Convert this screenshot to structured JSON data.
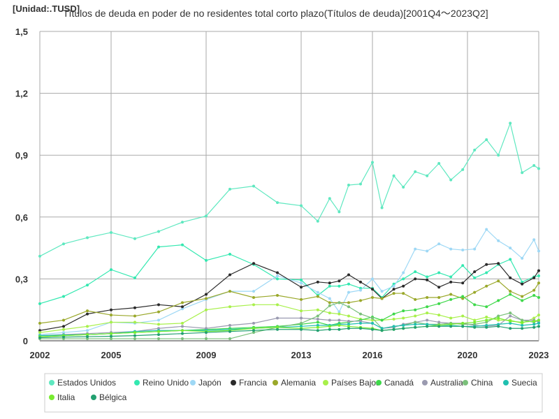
{
  "chart_data": {
    "type": "line",
    "title": "Títulos de deuda en poder de no residentes total corto plazo(Títulos de deuda)[2001Q4～2023Q2]",
    "unit_label": "[Unidad:.TUSD]",
    "xlim": [
      2002,
      2023
    ],
    "ylim": [
      0,
      1.5
    ],
    "x_ticks": [
      2002,
      2005,
      2009,
      2013,
      2016,
      2020,
      2023
    ],
    "y_ticks": [
      0,
      0.3,
      0.6,
      0.9,
      1.2,
      1.5
    ],
    "y_tick_labels": [
      "0",
      "0,3",
      "0,6",
      "0,9",
      "1,2",
      "1,5"
    ],
    "grid": true,
    "legend_position": "bottom",
    "series": [
      {
        "name": "Estados Unidos",
        "color": "#5fe8c0",
        "x": [
          2002,
          2003,
          2004,
          2005,
          2006,
          2007,
          2008,
          2009,
          2010,
          2011,
          2012,
          2013,
          2013.7,
          2014.2,
          2014.6,
          2015,
          2015.5,
          2016,
          2016.4,
          2016.9,
          2017.3,
          2017.8,
          2018.3,
          2018.8,
          2019.3,
          2019.8,
          2020.3,
          2020.8,
          2021.3,
          2021.8,
          2022.3,
          2022.8,
          2023
        ],
        "values": [
          0.41,
          0.47,
          0.5,
          0.525,
          0.495,
          0.53,
          0.575,
          0.605,
          0.735,
          0.75,
          0.67,
          0.655,
          0.58,
          0.69,
          0.625,
          0.755,
          0.76,
          0.865,
          0.645,
          0.8,
          0.745,
          0.82,
          0.8,
          0.86,
          0.78,
          0.83,
          0.925,
          0.975,
          0.9,
          1.055,
          0.815,
          0.85,
          0.835
        ]
      },
      {
        "name": "Reino Unido",
        "color": "#33e8b0",
        "x": [
          2002,
          2003,
          2004,
          2005,
          2006,
          2007,
          2008,
          2009,
          2010,
          2011,
          2012,
          2013,
          2013.7,
          2014.2,
          2014.6,
          2015,
          2015.5,
          2016,
          2016.4,
          2016.9,
          2017.3,
          2017.8,
          2018.3,
          2018.8,
          2019.3,
          2019.8,
          2020.3,
          2020.8,
          2021.3,
          2021.8,
          2022.3,
          2022.8,
          2023
        ],
        "values": [
          0.18,
          0.215,
          0.27,
          0.345,
          0.305,
          0.455,
          0.465,
          0.39,
          0.42,
          0.37,
          0.3,
          0.295,
          0.22,
          0.265,
          0.265,
          0.275,
          0.255,
          0.255,
          0.21,
          0.275,
          0.3,
          0.335,
          0.31,
          0.33,
          0.31,
          0.365,
          0.305,
          0.33,
          0.37,
          0.395,
          0.285,
          0.31,
          0.315
        ]
      },
      {
        "name": "Japón",
        "color": "#9ed8f5",
        "x": [
          2002,
          2003,
          2004,
          2005,
          2006,
          2007,
          2008,
          2009,
          2010,
          2011,
          2012,
          2013,
          2013.7,
          2014.2,
          2014.6,
          2015,
          2015.5,
          2016,
          2016.4,
          2016.9,
          2017.3,
          2017.8,
          2018.3,
          2018.8,
          2019.3,
          2019.8,
          2020.3,
          2020.8,
          2021.3,
          2021.8,
          2022.3,
          2022.8,
          2023
        ],
        "values": [
          0.03,
          0.04,
          0.05,
          0.09,
          0.085,
          0.1,
          0.155,
          0.2,
          0.24,
          0.24,
          0.315,
          0.28,
          0.235,
          0.205,
          0.14,
          0.235,
          0.245,
          0.3,
          0.24,
          0.265,
          0.33,
          0.445,
          0.435,
          0.47,
          0.445,
          0.44,
          0.445,
          0.54,
          0.485,
          0.45,
          0.4,
          0.49,
          0.435
        ]
      },
      {
        "name": "Francia",
        "color": "#2a2a2a",
        "x": [
          2002,
          2003,
          2004,
          2005,
          2006,
          2007,
          2008,
          2009,
          2010,
          2011,
          2012,
          2013,
          2013.7,
          2014.2,
          2014.6,
          2015,
          2015.5,
          2016,
          2016.4,
          2016.9,
          2017.3,
          2017.8,
          2018.3,
          2018.8,
          2019.3,
          2019.8,
          2020.3,
          2020.8,
          2021.3,
          2021.8,
          2022.3,
          2022.8,
          2023
        ],
        "values": [
          0.05,
          0.07,
          0.13,
          0.15,
          0.16,
          0.175,
          0.165,
          0.225,
          0.32,
          0.375,
          0.33,
          0.26,
          0.285,
          0.28,
          0.29,
          0.32,
          0.285,
          0.25,
          0.205,
          0.25,
          0.265,
          0.3,
          0.295,
          0.26,
          0.285,
          0.28,
          0.335,
          0.37,
          0.375,
          0.305,
          0.275,
          0.305,
          0.34
        ]
      },
      {
        "name": "Alemania",
        "color": "#9aa82a",
        "x": [
          2002,
          2003,
          2004,
          2005,
          2006,
          2007,
          2008,
          2009,
          2010,
          2011,
          2012,
          2013,
          2013.7,
          2014.2,
          2014.6,
          2015,
          2015.5,
          2016,
          2016.4,
          2016.9,
          2017.3,
          2017.8,
          2018.3,
          2018.8,
          2019.3,
          2019.8,
          2020.3,
          2020.8,
          2021.3,
          2021.8,
          2022.3,
          2022.8,
          2023
        ],
        "values": [
          0.085,
          0.1,
          0.145,
          0.125,
          0.12,
          0.14,
          0.185,
          0.205,
          0.24,
          0.21,
          0.22,
          0.2,
          0.215,
          0.185,
          0.185,
          0.185,
          0.195,
          0.21,
          0.205,
          0.23,
          0.23,
          0.2,
          0.21,
          0.21,
          0.225,
          0.205,
          0.235,
          0.265,
          0.29,
          0.24,
          0.215,
          0.245,
          0.28
        ]
      },
      {
        "name": "Países Bajos",
        "color": "#a8f04a",
        "x": [
          2002,
          2003,
          2004,
          2005,
          2006,
          2007,
          2008,
          2009,
          2010,
          2011,
          2012,
          2013,
          2013.7,
          2014.2,
          2014.6,
          2015,
          2015.5,
          2016,
          2016.4,
          2016.9,
          2017.3,
          2017.8,
          2018.3,
          2018.8,
          2019.3,
          2019.8,
          2020.3,
          2020.8,
          2021.3,
          2021.8,
          2022.3,
          2022.8,
          2023
        ],
        "values": [
          0.04,
          0.055,
          0.07,
          0.09,
          0.09,
          0.08,
          0.085,
          0.15,
          0.165,
          0.175,
          0.175,
          0.145,
          0.15,
          0.135,
          0.13,
          0.12,
          0.105,
          0.1,
          0.1,
          0.105,
          0.11,
          0.12,
          0.135,
          0.125,
          0.11,
          0.12,
          0.1,
          0.115,
          0.1,
          0.1,
          0.085,
          0.11,
          0.125
        ]
      },
      {
        "name": "Canadá",
        "color": "#3ed84a",
        "x": [
          2002,
          2003,
          2004,
          2005,
          2006,
          2007,
          2008,
          2009,
          2010,
          2011,
          2012,
          2013,
          2013.7,
          2014.2,
          2014.6,
          2015,
          2015.5,
          2016,
          2016.4,
          2016.9,
          2017.3,
          2017.8,
          2018.3,
          2018.8,
          2019.3,
          2019.8,
          2020.3,
          2020.8,
          2021.3,
          2021.8,
          2022.3,
          2022.8,
          2023
        ],
        "values": [
          0.02,
          0.025,
          0.03,
          0.035,
          0.04,
          0.045,
          0.05,
          0.055,
          0.06,
          0.065,
          0.07,
          0.08,
          0.09,
          0.075,
          0.085,
          0.09,
          0.1,
          0.115,
          0.1,
          0.13,
          0.145,
          0.15,
          0.165,
          0.18,
          0.2,
          0.215,
          0.175,
          0.165,
          0.195,
          0.225,
          0.195,
          0.22,
          0.21
        ]
      },
      {
        "name": "Australia",
        "color": "#9a9ab0",
        "x": [
          2002,
          2003,
          2004,
          2005,
          2006,
          2007,
          2008,
          2009,
          2010,
          2011,
          2012,
          2013,
          2013.7,
          2014.2,
          2014.6,
          2015,
          2015.5,
          2016,
          2016.4,
          2016.9,
          2017.3,
          2017.8,
          2018.3,
          2018.8,
          2019.3,
          2019.8,
          2020.3,
          2020.8,
          2021.3,
          2021.8,
          2022.3,
          2022.8,
          2023
        ],
        "values": [
          0.025,
          0.03,
          0.035,
          0.04,
          0.045,
          0.06,
          0.07,
          0.06,
          0.075,
          0.085,
          0.11,
          0.11,
          0.105,
          0.1,
          0.1,
          0.095,
          0.095,
          0.085,
          0.06,
          0.065,
          0.08,
          0.09,
          0.1,
          0.09,
          0.085,
          0.085,
          0.075,
          0.07,
          0.075,
          0.12,
          0.1,
          0.1,
          0.09
        ]
      },
      {
        "name": "China",
        "color": "#7ac07a",
        "x": [
          2002,
          2003,
          2004,
          2005,
          2006,
          2007,
          2008,
          2009,
          2010,
          2011,
          2012,
          2013,
          2013.7,
          2014.2,
          2014.6,
          2015,
          2015.5,
          2016,
          2016.4,
          2016.9,
          2017.3,
          2017.8,
          2018.3,
          2018.8,
          2019.3,
          2019.8,
          2020.3,
          2020.8,
          2021.3,
          2021.8,
          2022.3,
          2022.8,
          2023
        ],
        "values": [
          0.01,
          0.01,
          0.01,
          0.01,
          0.01,
          0.01,
          0.01,
          0.01,
          0.01,
          0.04,
          0.065,
          0.085,
          0.12,
          0.17,
          0.185,
          0.165,
          0.13,
          0.11,
          0.06,
          0.07,
          0.075,
          0.09,
          0.08,
          0.08,
          0.085,
          0.08,
          0.08,
          0.09,
          0.12,
          0.135,
          0.1,
          0.09,
          0.1
        ]
      },
      {
        "name": "Suecia",
        "color": "#20c0b0",
        "x": [
          2002,
          2003,
          2004,
          2005,
          2006,
          2007,
          2008,
          2009,
          2010,
          2011,
          2012,
          2013,
          2013.7,
          2014.2,
          2014.6,
          2015,
          2015.5,
          2016,
          2016.4,
          2016.9,
          2017.3,
          2017.8,
          2018.3,
          2018.8,
          2019.3,
          2019.8,
          2020.3,
          2020.8,
          2021.3,
          2021.8,
          2022.3,
          2022.8,
          2023
        ],
        "values": [
          0.025,
          0.028,
          0.03,
          0.035,
          0.045,
          0.05,
          0.05,
          0.05,
          0.055,
          0.06,
          0.065,
          0.07,
          0.075,
          0.075,
          0.08,
          0.08,
          0.085,
          0.085,
          0.06,
          0.07,
          0.075,
          0.08,
          0.08,
          0.075,
          0.075,
          0.07,
          0.07,
          0.075,
          0.08,
          0.085,
          0.075,
          0.08,
          0.085
        ]
      },
      {
        "name": "Italia",
        "color": "#78ec30",
        "x": [
          2002,
          2003,
          2004,
          2005,
          2006,
          2007,
          2008,
          2009,
          2010,
          2011,
          2012,
          2013,
          2013.7,
          2014.2,
          2014.6,
          2015,
          2015.5,
          2016,
          2016.4,
          2016.9,
          2017.3,
          2017.8,
          2018.3,
          2018.8,
          2019.3,
          2019.8,
          2020.3,
          2020.8,
          2021.3,
          2021.8,
          2022.3,
          2022.8,
          2023
        ],
        "values": [
          0.02,
          0.025,
          0.03,
          0.035,
          0.04,
          0.045,
          0.05,
          0.045,
          0.05,
          0.06,
          0.065,
          0.06,
          0.065,
          0.07,
          0.075,
          0.07,
          0.065,
          0.06,
          0.05,
          0.055,
          0.06,
          0.065,
          0.07,
          0.075,
          0.08,
          0.085,
          0.09,
          0.1,
          0.11,
          0.095,
          0.09,
          0.095,
          0.1
        ]
      },
      {
        "name": "Bélgica",
        "color": "#22a070",
        "x": [
          2002,
          2003,
          2004,
          2005,
          2006,
          2007,
          2008,
          2009,
          2010,
          2011,
          2012,
          2013,
          2013.7,
          2014.2,
          2014.6,
          2015,
          2015.5,
          2016,
          2016.4,
          2016.9,
          2017.3,
          2017.8,
          2018.3,
          2018.8,
          2019.3,
          2019.8,
          2020.3,
          2020.8,
          2021.3,
          2021.8,
          2022.3,
          2022.8,
          2023
        ],
        "values": [
          0.015,
          0.018,
          0.02,
          0.022,
          0.025,
          0.03,
          0.035,
          0.04,
          0.045,
          0.05,
          0.055,
          0.055,
          0.05,
          0.055,
          0.055,
          0.06,
          0.06,
          0.055,
          0.05,
          0.055,
          0.06,
          0.065,
          0.07,
          0.07,
          0.07,
          0.07,
          0.065,
          0.065,
          0.07,
          0.06,
          0.06,
          0.065,
          0.07
        ]
      }
    ]
  }
}
